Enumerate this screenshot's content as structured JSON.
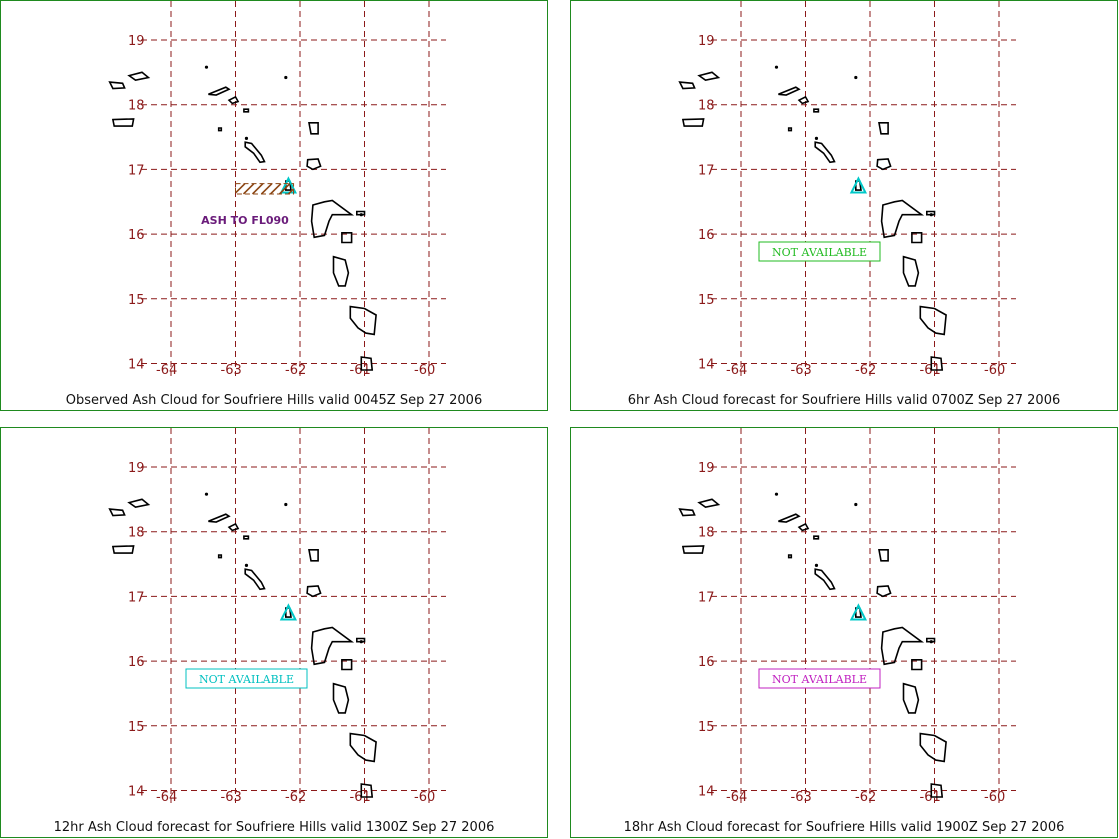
{
  "colors": {
    "border": "#1f8a1f",
    "grid": "#8b1a1a",
    "tick_label": "#8b1a1a",
    "coastline": "#000000",
    "volcano_marker": "#00c8c8",
    "ash_hatch": "#8b4513",
    "ash_label": "#6a1b7a"
  },
  "map": {
    "lon_ticks": [
      "-64",
      "-63",
      "-62",
      "-61",
      "-60"
    ],
    "lat_ticks": [
      "19",
      "18",
      "17",
      "16",
      "15",
      "14"
    ],
    "volcano_icon": "triangle-icon",
    "volcano_lon": -62.18,
    "volcano_lat": 16.72
  },
  "panels": [
    {
      "caption": "Observed Ash Cloud for Soufriere  Hills valid 0045Z Sep 27 2006",
      "ash_label": "ASH TO FL090",
      "ash_area": {
        "lon": [
          -63.0,
          -62.1
        ],
        "lat": [
          16.62,
          16.78
        ]
      },
      "status": "",
      "status_color": ""
    },
    {
      "caption": "6hr Ash Cloud forecast for Soufriere  Hills valid 0700Z Sep 27 2006",
      "ash_label": "",
      "status": "NOT AVAILABLE",
      "status_color": "#22bb22"
    },
    {
      "caption": "12hr Ash Cloud forecast for Soufriere  Hills valid 1300Z Sep 27 2006",
      "ash_label": "",
      "status": "NOT AVAILABLE",
      "status_color": "#00c0c0"
    },
    {
      "caption": "18hr Ash Cloud forecast for Soufriere  Hills valid 1900Z Sep 27 2006",
      "ash_label": "",
      "status": "NOT AVAILABLE",
      "status_color": "#c020c0"
    }
  ]
}
